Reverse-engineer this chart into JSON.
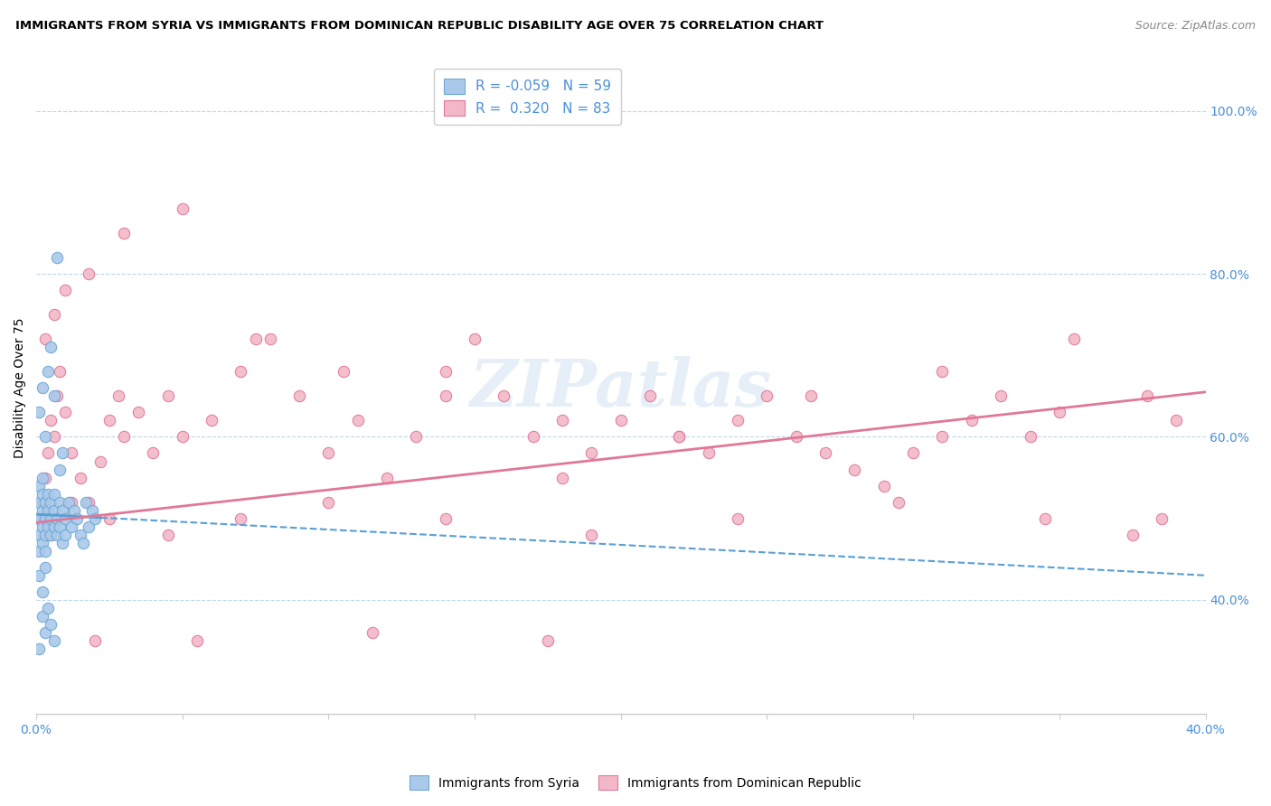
{
  "title": "IMMIGRANTS FROM SYRIA VS IMMIGRANTS FROM DOMINICAN REPUBLIC DISABILITY AGE OVER 75 CORRELATION CHART",
  "source": "Source: ZipAtlas.com",
  "ylabel": "Disability Age Over 75",
  "ylabel_right_ticks": [
    "40.0%",
    "60.0%",
    "80.0%",
    "100.0%"
  ],
  "ylabel_right_vals": [
    0.4,
    0.6,
    0.8,
    1.0
  ],
  "xlim": [
    0.0,
    0.4
  ],
  "ylim": [
    0.26,
    1.06
  ],
  "series1_color": "#aac9ea",
  "series1_edge": "#6fa8d4",
  "series2_color": "#f2b8c8",
  "series2_edge": "#e07898",
  "trendline1_color": "#5a9fd4",
  "trendline2_color": "#e07898",
  "R1": -0.059,
  "N1": 59,
  "R2": 0.32,
  "N2": 83,
  "watermark": "ZIPatlas",
  "legend_label1": "Immigrants from Syria",
  "legend_label2": "Immigrants from Dominican Republic",
  "syria_x": [
    0.001,
    0.001,
    0.001,
    0.001,
    0.001,
    0.002,
    0.002,
    0.002,
    0.002,
    0.002,
    0.003,
    0.003,
    0.003,
    0.003,
    0.004,
    0.004,
    0.004,
    0.005,
    0.005,
    0.005,
    0.006,
    0.006,
    0.006,
    0.007,
    0.007,
    0.008,
    0.008,
    0.009,
    0.009,
    0.01,
    0.01,
    0.011,
    0.012,
    0.013,
    0.014,
    0.015,
    0.016,
    0.017,
    0.018,
    0.019,
    0.02,
    0.001,
    0.002,
    0.003,
    0.004,
    0.005,
    0.006,
    0.007,
    0.008,
    0.009,
    0.001,
    0.002,
    0.003,
    0.001,
    0.002,
    0.003,
    0.004,
    0.005,
    0.006
  ],
  "syria_y": [
    0.5,
    0.52,
    0.48,
    0.54,
    0.46,
    0.51,
    0.53,
    0.49,
    0.47,
    0.55,
    0.5,
    0.52,
    0.48,
    0.46,
    0.51,
    0.49,
    0.53,
    0.5,
    0.52,
    0.48,
    0.51,
    0.49,
    0.53,
    0.5,
    0.48,
    0.52,
    0.49,
    0.51,
    0.47,
    0.5,
    0.48,
    0.52,
    0.49,
    0.51,
    0.5,
    0.48,
    0.47,
    0.52,
    0.49,
    0.51,
    0.5,
    0.63,
    0.66,
    0.6,
    0.68,
    0.71,
    0.65,
    0.82,
    0.56,
    0.58,
    0.34,
    0.38,
    0.36,
    0.43,
    0.41,
    0.44,
    0.39,
    0.37,
    0.35
  ],
  "dr_x": [
    0.001,
    0.002,
    0.003,
    0.004,
    0.005,
    0.006,
    0.007,
    0.008,
    0.01,
    0.012,
    0.015,
    0.018,
    0.022,
    0.025,
    0.028,
    0.03,
    0.035,
    0.04,
    0.045,
    0.05,
    0.06,
    0.07,
    0.08,
    0.09,
    0.1,
    0.11,
    0.12,
    0.13,
    0.14,
    0.15,
    0.16,
    0.17,
    0.18,
    0.19,
    0.2,
    0.21,
    0.22,
    0.23,
    0.24,
    0.25,
    0.26,
    0.27,
    0.28,
    0.29,
    0.3,
    0.31,
    0.32,
    0.33,
    0.34,
    0.35,
    0.003,
    0.006,
    0.01,
    0.018,
    0.03,
    0.05,
    0.075,
    0.105,
    0.14,
    0.18,
    0.22,
    0.265,
    0.31,
    0.355,
    0.38,
    0.39,
    0.005,
    0.012,
    0.025,
    0.045,
    0.07,
    0.1,
    0.14,
    0.19,
    0.24,
    0.295,
    0.345,
    0.375,
    0.385,
    0.02,
    0.055,
    0.115,
    0.175
  ],
  "dr_y": [
    0.5,
    0.52,
    0.55,
    0.58,
    0.62,
    0.6,
    0.65,
    0.68,
    0.63,
    0.58,
    0.55,
    0.52,
    0.57,
    0.62,
    0.65,
    0.6,
    0.63,
    0.58,
    0.65,
    0.6,
    0.62,
    0.68,
    0.72,
    0.65,
    0.58,
    0.62,
    0.55,
    0.6,
    0.68,
    0.72,
    0.65,
    0.6,
    0.55,
    0.58,
    0.62,
    0.65,
    0.6,
    0.58,
    0.62,
    0.65,
    0.6,
    0.58,
    0.56,
    0.54,
    0.58,
    0.6,
    0.62,
    0.65,
    0.6,
    0.63,
    0.72,
    0.75,
    0.78,
    0.8,
    0.85,
    0.88,
    0.72,
    0.68,
    0.65,
    0.62,
    0.6,
    0.65,
    0.68,
    0.72,
    0.65,
    0.62,
    0.48,
    0.52,
    0.5,
    0.48,
    0.5,
    0.52,
    0.5,
    0.48,
    0.5,
    0.52,
    0.5,
    0.48,
    0.5,
    0.35,
    0.35,
    0.36,
    0.35
  ],
  "trendline1_x0": 0.0,
  "trendline1_x1": 0.4,
  "trendline1_y0": 0.505,
  "trendline1_y1": 0.43,
  "trendline2_x0": 0.0,
  "trendline2_x1": 0.4,
  "trendline2_y0": 0.495,
  "trendline2_y1": 0.655
}
